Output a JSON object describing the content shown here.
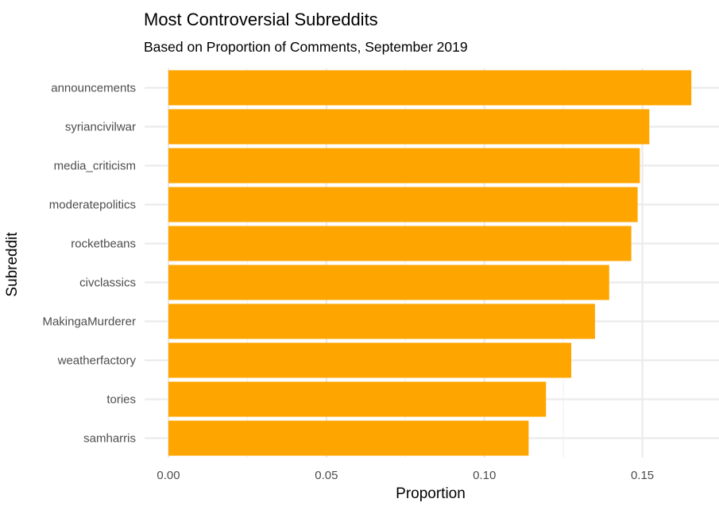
{
  "chart_data": {
    "type": "bar",
    "orientation": "horizontal",
    "title": "Most Controversial Subreddits",
    "subtitle": "Based on Proportion of Comments, September 2019",
    "xlabel": "Proportion",
    "ylabel": "Subreddit",
    "categories": [
      "announcements",
      "syriancivilwar",
      "media_criticism",
      "moderatepolitics",
      "rocketbeans",
      "civclassics",
      "MakingaMurderer",
      "weatherfactory",
      "tories",
      "samharris"
    ],
    "values": [
      0.1655,
      0.1522,
      0.1492,
      0.1485,
      0.1465,
      0.1395,
      0.135,
      0.1275,
      0.1195,
      0.114
    ],
    "xlim": [
      0,
      0.173
    ],
    "xticks": [
      {
        "value": 0,
        "label": "0.00"
      },
      {
        "value": 0.05,
        "label": "0.05"
      },
      {
        "value": 0.1,
        "label": "0.10"
      },
      {
        "value": 0.15,
        "label": "0.15"
      }
    ],
    "bar_color": "#FFA500",
    "grid": true
  }
}
